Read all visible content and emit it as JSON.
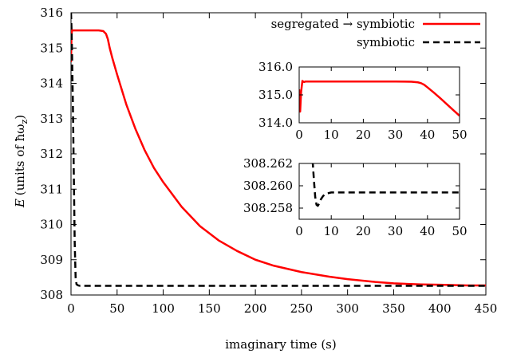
{
  "chart_data": [
    {
      "type": "line",
      "title": "",
      "xlabel": "imaginary time (s)",
      "ylabel_prefix": "E",
      "ylabel_rest": "(units of ħω",
      "ylabel_sub": "z",
      "ylabel_close": ")",
      "xlim": [
        0,
        450
      ],
      "ylim": [
        308,
        316
      ],
      "xticks": [
        0,
        50,
        100,
        150,
        200,
        250,
        300,
        350,
        400,
        450
      ],
      "yticks": [
        308,
        309,
        310,
        311,
        312,
        313,
        314,
        315,
        316
      ],
      "xtick_labels": [
        "0",
        "50",
        "100",
        "150",
        "200",
        "250",
        "300",
        "350",
        "400",
        "450"
      ],
      "ytick_labels": [
        "308",
        "309",
        "310",
        "311",
        "312",
        "313",
        "314",
        "315",
        "316"
      ],
      "legend_position": "top-right",
      "series": [
        {
          "name": "segregated → symbiotic",
          "color": "#ff0000",
          "style": "solid",
          "x": [
            0,
            0.5,
            1,
            2,
            3,
            5,
            10,
            20,
            30,
            35,
            38,
            40,
            42,
            45,
            50,
            60,
            70,
            80,
            90,
            100,
            120,
            140,
            160,
            180,
            200,
            220,
            250,
            280,
            300,
            330,
            350,
            380,
            400,
            430,
            450
          ],
          "y": [
            314.6,
            315.3,
            315.5,
            315.5,
            315.5,
            315.5,
            315.5,
            315.5,
            315.5,
            315.48,
            315.4,
            315.25,
            315.0,
            314.7,
            314.25,
            313.4,
            312.7,
            312.1,
            311.6,
            311.2,
            310.5,
            309.95,
            309.55,
            309.25,
            309.0,
            308.83,
            308.65,
            308.52,
            308.45,
            308.37,
            308.33,
            308.3,
            308.29,
            308.27,
            308.27
          ]
        },
        {
          "name": "symbiotic",
          "color": "#000000",
          "style": "dashed",
          "x": [
            0,
            0.5,
            1,
            2,
            3,
            4,
            5,
            6,
            8,
            10,
            15,
            20,
            50,
            100,
            200,
            300,
            400,
            450
          ],
          "y": [
            316.0,
            315.6,
            315.0,
            313.5,
            311.5,
            309.5,
            308.5,
            308.3,
            308.27,
            308.26,
            308.26,
            308.26,
            308.26,
            308.26,
            308.26,
            308.26,
            308.26,
            308.26
          ]
        }
      ]
    },
    {
      "type": "line",
      "title": "",
      "xlim": [
        0,
        50
      ],
      "ylim": [
        314.0,
        316.0
      ],
      "xticks": [
        0,
        10,
        20,
        30,
        40,
        50
      ],
      "yticks": [
        314.0,
        315.0,
        316.0
      ],
      "xtick_labels": [
        "0",
        "10",
        "20",
        "30",
        "40",
        "50"
      ],
      "ytick_labels": [
        "314.0",
        "315.0",
        "316.0"
      ],
      "series": [
        {
          "name": "segregated → symbiotic",
          "color": "#ff0000",
          "style": "solid",
          "x": [
            0,
            0.3,
            0.6,
            1,
            1.5,
            2,
            5,
            10,
            20,
            30,
            35,
            37,
            38,
            39,
            40,
            42,
            44,
            46,
            48,
            50
          ],
          "y": [
            315.2,
            314.4,
            315.1,
            315.5,
            315.46,
            315.48,
            315.48,
            315.48,
            315.48,
            315.48,
            315.47,
            315.45,
            315.42,
            315.36,
            315.27,
            315.08,
            314.88,
            314.67,
            314.46,
            314.25
          ]
        }
      ]
    },
    {
      "type": "line",
      "title": "",
      "xlim": [
        0,
        50
      ],
      "ylim": [
        308.257,
        308.262
      ],
      "xticks": [
        0,
        10,
        20,
        30,
        40,
        50
      ],
      "yticks": [
        308.258,
        308.26,
        308.262
      ],
      "xtick_labels": [
        "0",
        "10",
        "20",
        "30",
        "40",
        "50"
      ],
      "ytick_labels": [
        "308.258",
        "308.260",
        "308.262"
      ],
      "series": [
        {
          "name": "symbiotic",
          "color": "#000000",
          "style": "dashed",
          "x": [
            4.2,
            4.6,
            5.0,
            5.4,
            5.8,
            6.2,
            6.8,
            7.5,
            8.5,
            10,
            12,
            15,
            20,
            30,
            40,
            50
          ],
          "y": [
            308.2622,
            308.2605,
            308.259,
            308.2583,
            308.2582,
            308.2584,
            308.2588,
            308.2591,
            308.2593,
            308.2594,
            308.2594,
            308.2594,
            308.2594,
            308.2594,
            308.2594,
            308.2594
          ]
        }
      ]
    }
  ]
}
